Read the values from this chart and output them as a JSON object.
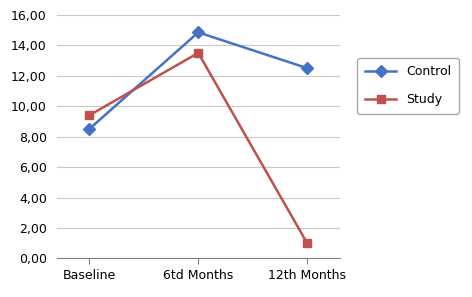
{
  "x_labels": [
    "Baseline",
    "6td Months",
    "12th Months"
  ],
  "control_values": [
    8.5,
    14.85,
    12.5
  ],
  "study_values": [
    9.4,
    13.5,
    1.0
  ],
  "control_color": "#4472C4",
  "study_color": "#C0504D",
  "control_label": "Control",
  "study_label": "Study",
  "ylim_min": 0,
  "ylim_max": 16,
  "ytick_step": 2,
  "background_color": "#FFFFFF",
  "grid_color": "#C8C8C8",
  "marker_control": "D",
  "marker_study": "s",
  "linewidth": 1.8,
  "markersize": 6,
  "tick_fontsize": 9,
  "legend_fontsize": 9
}
